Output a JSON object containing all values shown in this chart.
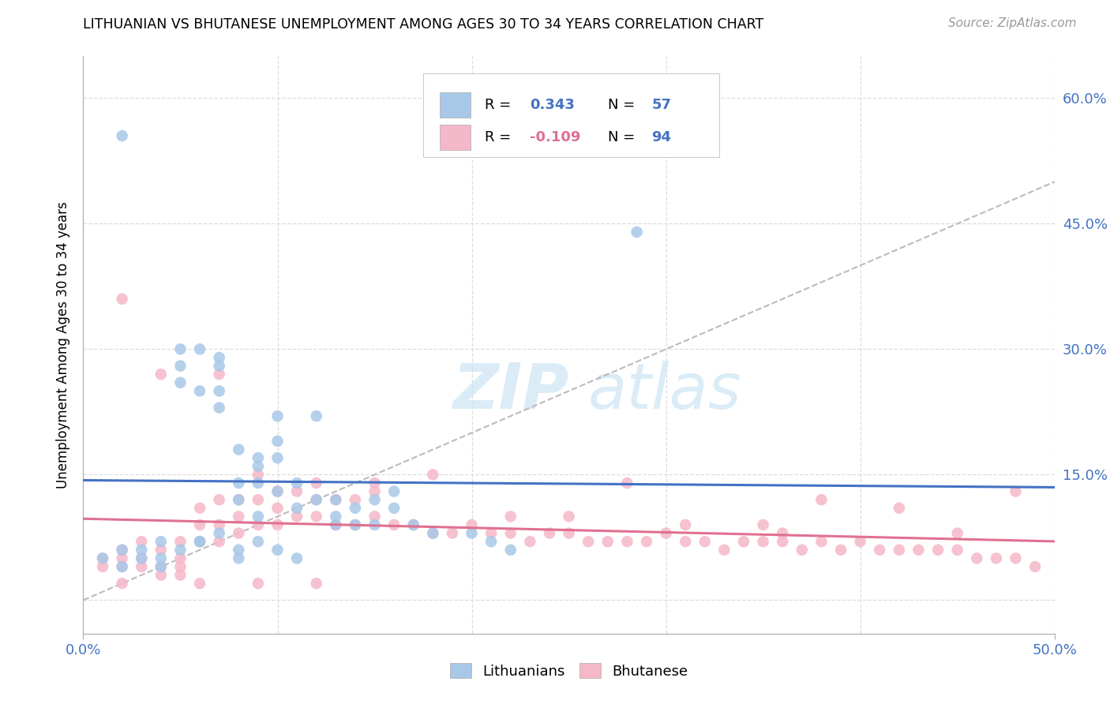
{
  "title": "LITHUANIAN VS BHUTANESE UNEMPLOYMENT AMONG AGES 30 TO 34 YEARS CORRELATION CHART",
  "source": "Source: ZipAtlas.com",
  "ylabel": "Unemployment Among Ages 30 to 34 years",
  "legend_blue_label": "Lithuanians",
  "legend_pink_label": "Bhutanese",
  "R_blue": "0.343",
  "N_blue": "57",
  "R_pink": "-0.109",
  "N_pink": "94",
  "blue_scatter_color": "#a8c8e8",
  "pink_scatter_color": "#f5b8c8",
  "blue_line_color": "#4472c4",
  "pink_line_color": "#e07090",
  "gray_dash_color": "#bbbbbb",
  "xmin": 0.0,
  "xmax": 0.5,
  "ymin": -0.04,
  "ymax": 0.65,
  "ytick_vals": [
    0.0,
    0.15,
    0.3,
    0.45,
    0.6
  ],
  "ytick_labels": [
    "",
    "15.0%",
    "30.0%",
    "45.0%",
    "60.0%"
  ],
  "xtick_vals": [
    0.0,
    0.5
  ],
  "xtick_labels": [
    "0.0%",
    "50.0%"
  ],
  "grid_color": "#dddddd",
  "tick_color": "#4472c4",
  "blue_x": [
    0.02,
    0.03,
    0.04,
    0.04,
    0.05,
    0.05,
    0.05,
    0.06,
    0.06,
    0.07,
    0.07,
    0.07,
    0.07,
    0.08,
    0.08,
    0.08,
    0.09,
    0.09,
    0.09,
    0.09,
    0.1,
    0.1,
    0.1,
    0.1,
    0.11,
    0.11,
    0.12,
    0.12,
    0.13,
    0.13,
    0.13,
    0.14,
    0.14,
    0.15,
    0.15,
    0.16,
    0.16,
    0.17,
    0.18,
    0.2,
    0.21,
    0.22,
    0.01,
    0.02,
    0.03,
    0.04,
    0.05,
    0.06,
    0.06,
    0.07,
    0.08,
    0.08,
    0.09,
    0.1,
    0.11,
    0.285,
    0.02
  ],
  "blue_y": [
    0.555,
    0.05,
    0.05,
    0.04,
    0.3,
    0.28,
    0.26,
    0.3,
    0.25,
    0.29,
    0.28,
    0.25,
    0.23,
    0.18,
    0.14,
    0.12,
    0.17,
    0.16,
    0.14,
    0.1,
    0.22,
    0.19,
    0.17,
    0.13,
    0.14,
    0.11,
    0.12,
    0.22,
    0.1,
    0.12,
    0.09,
    0.11,
    0.09,
    0.12,
    0.09,
    0.13,
    0.11,
    0.09,
    0.08,
    0.08,
    0.07,
    0.06,
    0.05,
    0.06,
    0.06,
    0.07,
    0.06,
    0.07,
    0.07,
    0.08,
    0.06,
    0.05,
    0.07,
    0.06,
    0.05,
    0.44,
    0.04
  ],
  "pink_x": [
    0.01,
    0.01,
    0.02,
    0.02,
    0.02,
    0.03,
    0.03,
    0.03,
    0.04,
    0.04,
    0.04,
    0.05,
    0.05,
    0.05,
    0.05,
    0.06,
    0.06,
    0.06,
    0.07,
    0.07,
    0.07,
    0.08,
    0.08,
    0.08,
    0.09,
    0.09,
    0.1,
    0.1,
    0.1,
    0.11,
    0.11,
    0.12,
    0.12,
    0.13,
    0.13,
    0.14,
    0.14,
    0.15,
    0.15,
    0.16,
    0.17,
    0.18,
    0.19,
    0.2,
    0.21,
    0.22,
    0.23,
    0.24,
    0.25,
    0.26,
    0.27,
    0.28,
    0.29,
    0.3,
    0.31,
    0.32,
    0.33,
    0.34,
    0.35,
    0.36,
    0.37,
    0.38,
    0.39,
    0.4,
    0.41,
    0.42,
    0.43,
    0.44,
    0.45,
    0.46,
    0.47,
    0.48,
    0.49,
    0.02,
    0.04,
    0.07,
    0.09,
    0.12,
    0.15,
    0.18,
    0.22,
    0.25,
    0.28,
    0.31,
    0.35,
    0.38,
    0.42,
    0.45,
    0.02,
    0.06,
    0.09,
    0.12,
    0.36,
    0.48
  ],
  "pink_y": [
    0.05,
    0.04,
    0.06,
    0.05,
    0.04,
    0.07,
    0.05,
    0.04,
    0.06,
    0.04,
    0.03,
    0.07,
    0.05,
    0.04,
    0.03,
    0.11,
    0.09,
    0.07,
    0.12,
    0.09,
    0.07,
    0.12,
    0.1,
    0.08,
    0.12,
    0.09,
    0.13,
    0.11,
    0.09,
    0.13,
    0.1,
    0.12,
    0.1,
    0.12,
    0.09,
    0.12,
    0.09,
    0.13,
    0.1,
    0.09,
    0.09,
    0.08,
    0.08,
    0.09,
    0.08,
    0.08,
    0.07,
    0.08,
    0.08,
    0.07,
    0.07,
    0.07,
    0.07,
    0.08,
    0.07,
    0.07,
    0.06,
    0.07,
    0.07,
    0.07,
    0.06,
    0.07,
    0.06,
    0.07,
    0.06,
    0.06,
    0.06,
    0.06,
    0.06,
    0.05,
    0.05,
    0.05,
    0.04,
    0.36,
    0.27,
    0.27,
    0.15,
    0.14,
    0.14,
    0.15,
    0.1,
    0.1,
    0.14,
    0.09,
    0.09,
    0.12,
    0.11,
    0.08,
    0.02,
    0.02,
    0.02,
    0.02,
    0.08,
    0.13
  ]
}
